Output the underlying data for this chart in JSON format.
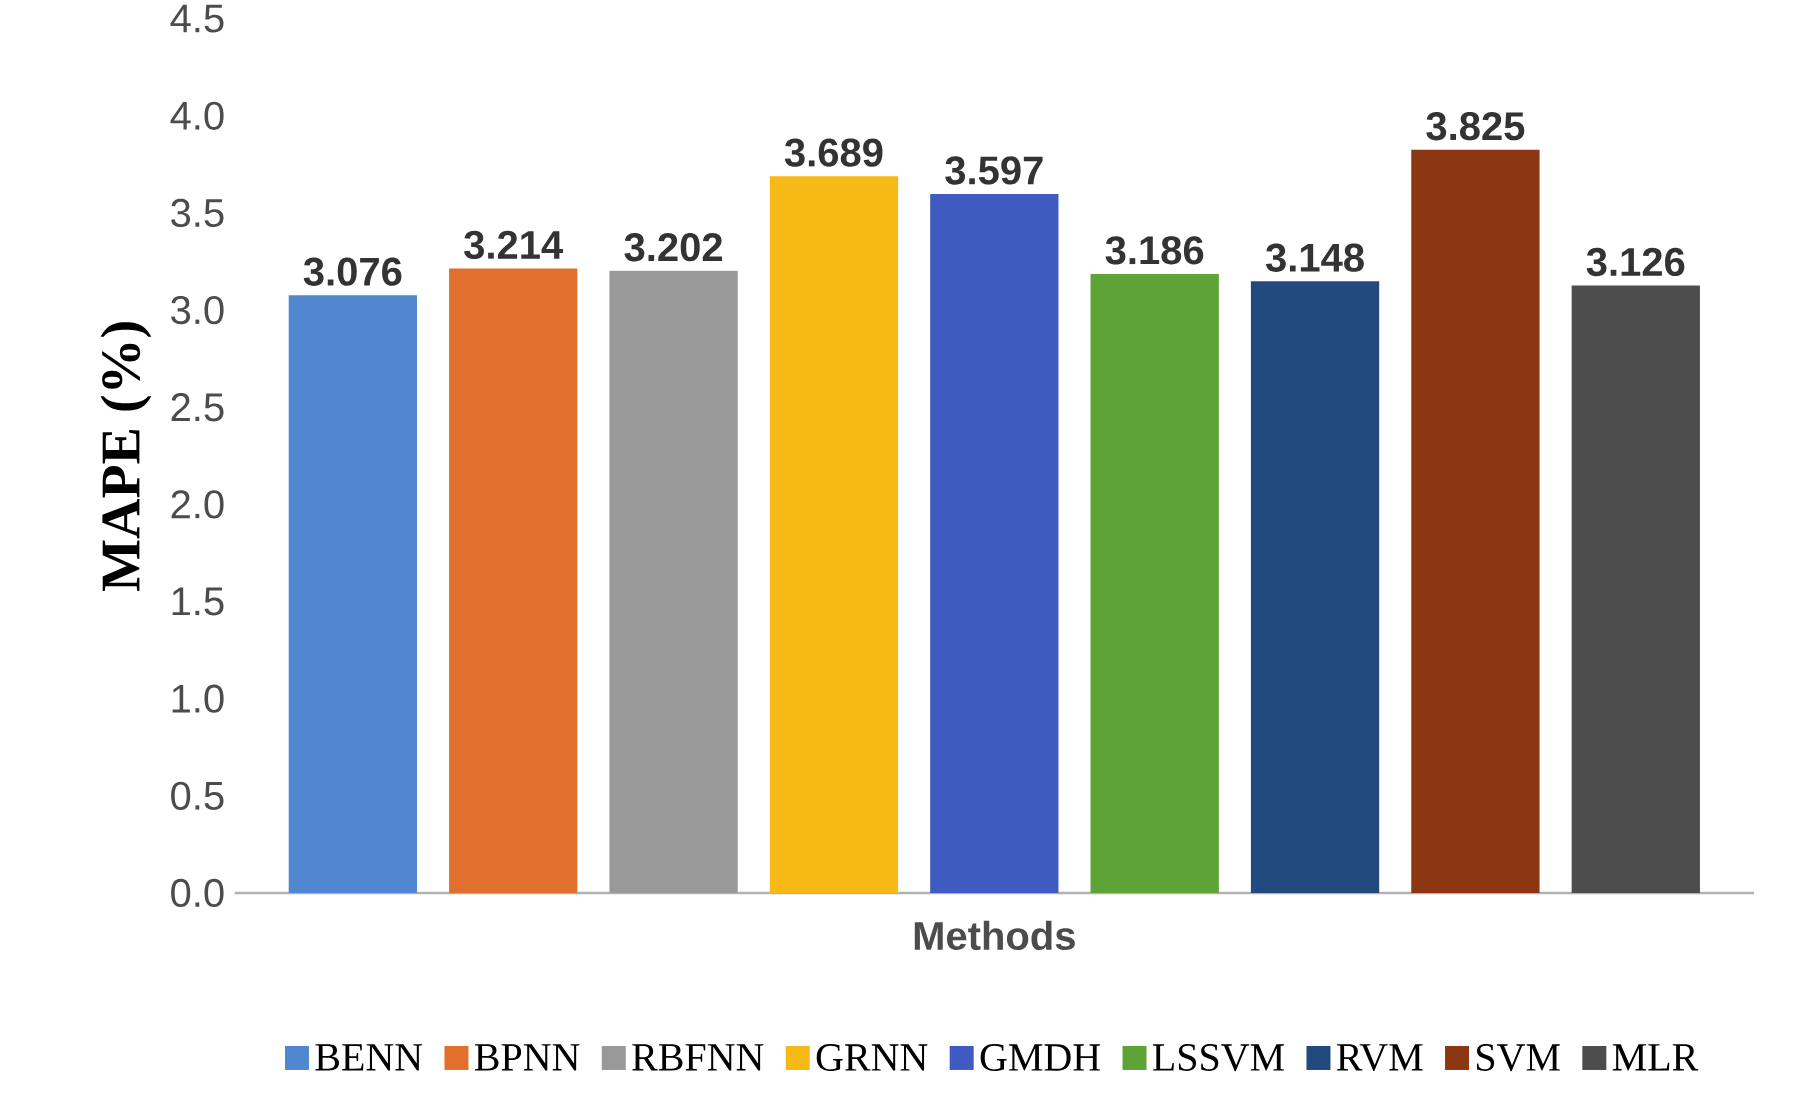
{
  "chart_data": {
    "type": "bar",
    "xlabel": "Methods",
    "ylabel": "MAPE (%)",
    "categories": [
      null
    ],
    "series": [
      {
        "name": "BENN",
        "color": "#5087cf",
        "values": [
          3.076
        ]
      },
      {
        "name": "BPNN",
        "color": "#e2702d",
        "values": [
          3.214
        ]
      },
      {
        "name": "RBFNN",
        "color": "#999999",
        "values": [
          3.202
        ]
      },
      {
        "name": "GRNN",
        "color": "#f7b916",
        "values": [
          3.689
        ]
      },
      {
        "name": "GMDH",
        "color": "#3f5ac0",
        "values": [
          3.597
        ]
      },
      {
        "name": "LSSVM",
        "color": "#5da335",
        "values": [
          3.186
        ]
      },
      {
        "name": "RVM",
        "color": "#234a7e",
        "values": [
          3.148
        ]
      },
      {
        "name": "SVM",
        "color": "#8b3812",
        "values": [
          3.825
        ]
      },
      {
        "name": "MLR",
        "color": "#4d4d4d",
        "values": [
          3.126
        ]
      }
    ],
    "ylim": [
      0,
      4.5
    ],
    "yticks": [
      {
        "value": 0,
        "label": "0.0"
      },
      {
        "value": 0.5,
        "label": "0.5"
      },
      {
        "value": 1,
        "label": "1.0"
      },
      {
        "value": 1.5,
        "label": "1.5"
      },
      {
        "value": 2,
        "label": "2.0"
      },
      {
        "value": 2.5,
        "label": "2.5"
      },
      {
        "value": 3,
        "label": "3.0"
      },
      {
        "value": 3.5,
        "label": "3.5"
      },
      {
        "value": 4,
        "label": "4.0"
      },
      {
        "value": 4.5,
        "label": "4.5"
      }
    ],
    "data_labels": true,
    "grid": false,
    "legend": "bottom"
  }
}
